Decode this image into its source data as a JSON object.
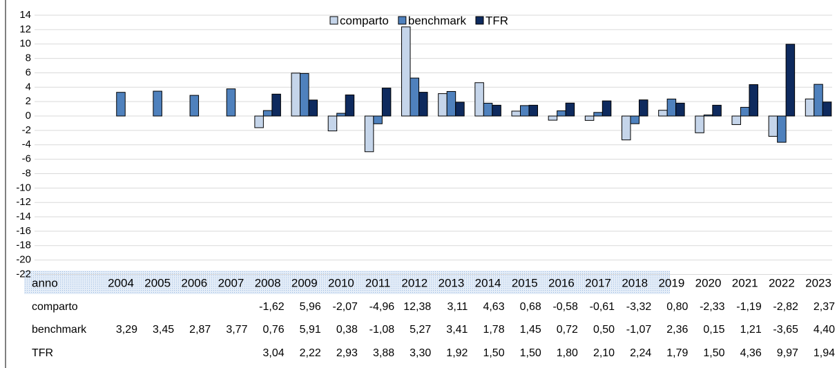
{
  "chart_data": {
    "type": "bar",
    "categories_label": "anno",
    "categories": [
      "2004",
      "2005",
      "2006",
      "2007",
      "2008",
      "2009",
      "2010",
      "2011",
      "2012",
      "2013",
      "2014",
      "2015",
      "2016",
      "2017",
      "2018",
      "2019",
      "2020",
      "2021",
      "2022",
      "2023"
    ],
    "series": [
      {
        "name": "comparto",
        "color": "#c5d5ea",
        "values": [
          null,
          null,
          null,
          null,
          -1.62,
          5.96,
          -2.07,
          -4.96,
          12.38,
          3.11,
          4.63,
          0.68,
          -0.58,
          -0.61,
          -3.32,
          0.8,
          -2.33,
          -1.19,
          -2.82,
          2.37
        ],
        "value_labels": [
          null,
          null,
          null,
          null,
          "-1,62",
          "5,96",
          "-2,07",
          "-4,96",
          "12,38",
          "3,11",
          "4,63",
          "0,68",
          "-0,58",
          "-0,61",
          "-3,32",
          "0,80",
          "-2,33",
          "-1,19",
          "-2,82",
          "2,37"
        ]
      },
      {
        "name": "benchmark",
        "color": "#4f81bd",
        "values": [
          3.29,
          3.45,
          2.87,
          3.77,
          0.76,
          5.91,
          0.38,
          -1.08,
          5.27,
          3.41,
          1.78,
          1.45,
          0.72,
          0.5,
          -1.07,
          2.36,
          0.15,
          1.21,
          -3.65,
          4.4
        ],
        "value_labels": [
          "3,29",
          "3,45",
          "2,87",
          "3,77",
          "0,76",
          "5,91",
          "0,38",
          "-1,08",
          "5,27",
          "3,41",
          "1,78",
          "1,45",
          "0,72",
          "0,50",
          "-1,07",
          "2,36",
          "0,15",
          "1,21",
          "-3,65",
          "4,40"
        ]
      },
      {
        "name": "TFR",
        "color": "#0e2a5e",
        "values": [
          null,
          null,
          null,
          null,
          3.04,
          2.22,
          2.93,
          3.88,
          3.3,
          1.92,
          1.5,
          1.5,
          1.8,
          2.1,
          2.24,
          1.79,
          1.5,
          4.36,
          9.97,
          1.94
        ],
        "value_labels": [
          null,
          null,
          null,
          null,
          "3,04",
          "2,22",
          "2,93",
          "3,88",
          "3,30",
          "1,92",
          "1,50",
          "1,50",
          "1,80",
          "2,10",
          "2,24",
          "1,79",
          "1,50",
          "4,36",
          "9,97",
          "1,94"
        ]
      }
    ],
    "ylim": [
      -22,
      14
    ],
    "yticks": [
      -22,
      -20,
      -18,
      -16,
      -14,
      -12,
      -10,
      -8,
      -6,
      -4,
      -2,
      0,
      2,
      4,
      6,
      8,
      10,
      12,
      14
    ],
    "grid": true,
    "legend": "top"
  }
}
